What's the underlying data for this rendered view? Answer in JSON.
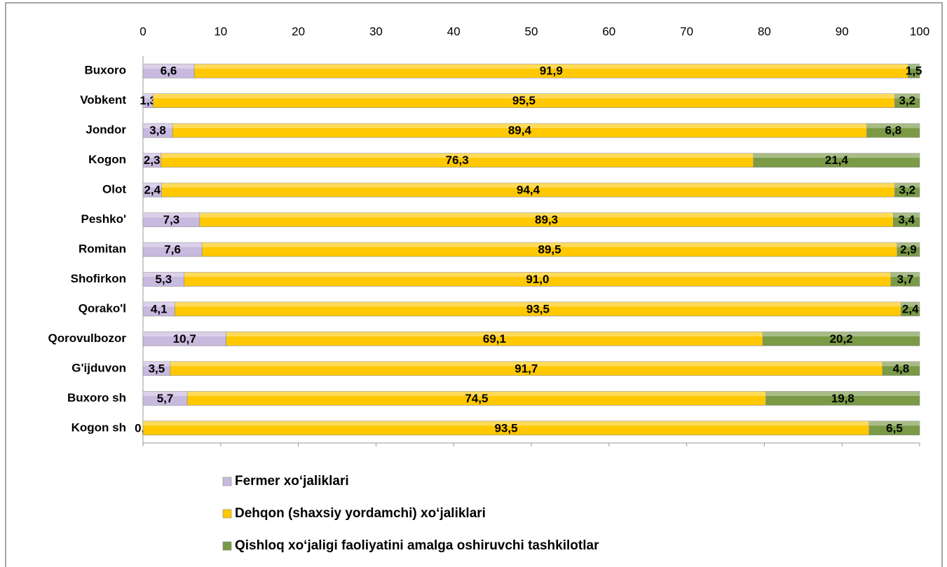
{
  "chart_data": {
    "type": "stacked-bar",
    "orientation": "horizontal",
    "categories": [
      "Buxoro",
      "Vobkent",
      "Jondor",
      "Kogon",
      "Olot",
      "Peshko'",
      "Romitan",
      "Shofirkon",
      "Qorako'l",
      "Qorovulbozor",
      "G'ijduvon",
      "Buxoro sh",
      "Kogon sh"
    ],
    "series": [
      {
        "name": "Fermer xoʻjaliklari",
        "color": "#c8b9df",
        "values": [
          6.6,
          1.3,
          3.8,
          2.3,
          2.4,
          7.3,
          7.6,
          5.3,
          4.1,
          10.7,
          3.5,
          5.7,
          0.0
        ],
        "value_labels": [
          "6,6",
          "1,3",
          "3,8",
          "2,3",
          "2,4",
          "7,3",
          "7,6",
          "5,3",
          "4,1",
          "10,7",
          "3,5",
          "5,7",
          "0,0"
        ]
      },
      {
        "name": "Dehqon (shaxsiy yordamchi) xoʻjaliklari",
        "color": "#ffc800",
        "values": [
          91.9,
          95.5,
          89.4,
          76.3,
          94.4,
          89.3,
          89.5,
          91.0,
          93.5,
          69.1,
          91.7,
          74.5,
          93.5
        ],
        "value_labels": [
          "91,9",
          "95,5",
          "89,4",
          "76,3",
          "94,4",
          "89,3",
          "89,5",
          "91,0",
          "93,5",
          "69,1",
          "91,7",
          "74,5",
          "93,5"
        ]
      },
      {
        "name": "Qishloq xoʻjaligi faoliyatini amalga oshiruvchi tashkilotlar",
        "color": "#7a9a46",
        "values": [
          1.5,
          3.2,
          6.8,
          21.4,
          3.2,
          3.4,
          2.9,
          3.7,
          2.4,
          20.2,
          4.8,
          19.8,
          6.5
        ],
        "value_labels": [
          "1,5",
          "3,2",
          "6,8",
          "21,4",
          "3,2",
          "3,4",
          "2,9",
          "3,7",
          "2,4",
          "20,2",
          "4,8",
          "19,8",
          "6,5"
        ]
      }
    ],
    "xlim": [
      0,
      100
    ],
    "xticks": [
      0,
      10,
      20,
      30,
      40,
      50,
      60,
      70,
      80,
      90,
      100
    ],
    "legend": "bottom"
  }
}
